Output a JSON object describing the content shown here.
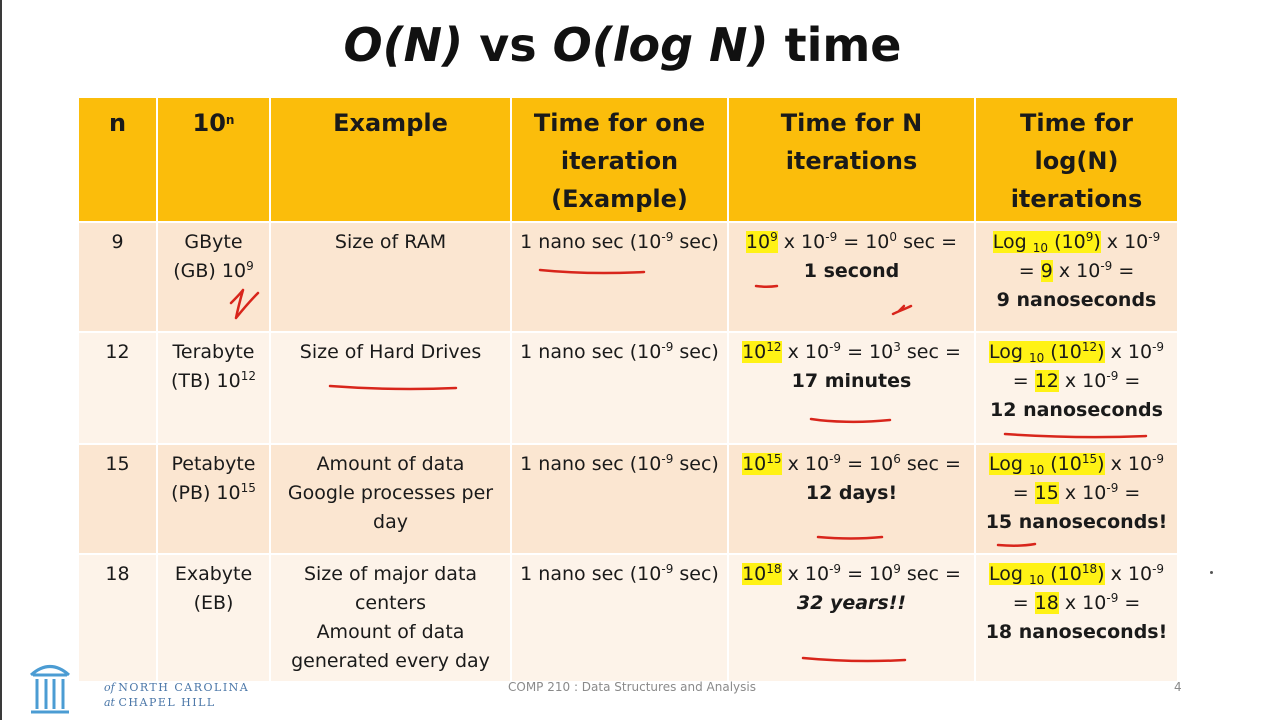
{
  "title": {
    "part1": "O(N)",
    "part2": " vs ",
    "part3": "O(log N)",
    "part4": " time"
  },
  "headers": {
    "n": "n",
    "pow_base": "10",
    "pow_exp": "n",
    "example": "Example",
    "one_iter": [
      "Time for one",
      "iteration",
      "(Example)"
    ],
    "n_iter": [
      "Time for N",
      "iterations"
    ],
    "log_iter": [
      "Time for",
      "log(N)",
      "iterations"
    ]
  },
  "rows": [
    {
      "n": "9",
      "unit_name": "GByte",
      "unit_abbr": "(GB) 10",
      "unit_exp": "9",
      "example": [
        "Size of RAM"
      ],
      "one": {
        "pre": "1 nano sec (10",
        "exp": "-9",
        "post": " sec)"
      },
      "nt": {
        "hl": "10",
        "hl_exp": "9",
        "mid": " x 10",
        "mid_exp": "-9",
        "eq": "  = 10",
        "eq_exp": "0",
        "tail": " sec =",
        "result": "1 second"
      },
      "lg": {
        "log": "Log ",
        "sub": "10",
        "arg": " (10",
        "arg_exp": "9",
        "close": ")",
        "x": " x 10",
        "x_exp": "-9",
        "eq_pre": "= ",
        "val": "9",
        "eq_post": " x 10",
        "eq_post_exp": "-9",
        "eq_end": " =",
        "result": "9 nanoseconds"
      }
    },
    {
      "n": "12",
      "unit_name": "Terabyte",
      "unit_abbr": "(TB) 10",
      "unit_exp": "12",
      "example": [
        "Size of Hard Drives"
      ],
      "one": {
        "pre": "1 nano sec (10",
        "exp": "-9",
        "post": " sec)"
      },
      "nt": {
        "hl": "10",
        "hl_exp": "12",
        "mid": " x 10",
        "mid_exp": "-9",
        "eq": "  = 10",
        "eq_exp": "3",
        "tail": " sec =",
        "result": "17 minutes"
      },
      "lg": {
        "log": "Log ",
        "sub": "10",
        "arg": " (10",
        "arg_exp": "12",
        "close": ")",
        "x": " x 10",
        "x_exp": "-9",
        "eq_pre": "= ",
        "val": "12",
        "eq_post": " x 10",
        "eq_post_exp": "-9",
        "eq_end": " =",
        "result": "12 nanoseconds"
      }
    },
    {
      "n": "15",
      "unit_name": "Petabyte",
      "unit_abbr": "(PB) 10",
      "unit_exp": "15",
      "example": [
        "Amount of data",
        "Google processes per",
        "day"
      ],
      "one": {
        "pre": "1 nano sec (10",
        "exp": "-9",
        "post": " sec)"
      },
      "nt": {
        "hl": "10",
        "hl_exp": "15",
        "mid": " x 10",
        "mid_exp": "-9",
        "eq": "  = 10",
        "eq_exp": "6",
        "tail": " sec =",
        "result": "12 days!"
      },
      "lg": {
        "log": "Log ",
        "sub": "10",
        "arg": " (10",
        "arg_exp": "15",
        "close": ")",
        "x": " x 10",
        "x_exp": "-9",
        "eq_pre": "= ",
        "val": "15",
        "eq_post": " x 10",
        "eq_post_exp": "-9",
        "eq_end": " =",
        "result": "15 nanoseconds!"
      }
    },
    {
      "n": "18",
      "unit_name": "Exabyte",
      "unit_abbr": "(EB)",
      "unit_exp": "",
      "example": [
        "Size of major data",
        "centers",
        "Amount of data",
        "generated every day"
      ],
      "one": {
        "pre": "1 nano sec (10",
        "exp": "-9",
        "post": " sec)"
      },
      "nt": {
        "hl": "10",
        "hl_exp": "18",
        "mid": " x 10",
        "mid_exp": "-9",
        "eq": "  = 10",
        "eq_exp": "9",
        "tail": " sec =",
        "result": "32 years!!"
      },
      "lg": {
        "log": "Log ",
        "sub": "10",
        "arg": " (10",
        "arg_exp": "18",
        "close": ")",
        "x": " x 10",
        "x_exp": "-9",
        "eq_pre": "= ",
        "val": "18",
        "eq_post": " x 10",
        "eq_post_exp": "-9",
        "eq_end": " =",
        "result": "18 nanoseconds!"
      }
    }
  ],
  "footer": {
    "uni_line1": "NORTH CAROLINA",
    "uni_line1_pre": "of ",
    "uni_line2": "CHAPEL HILL",
    "uni_line2_pre": "at ",
    "course": "COMP 210 : Data Structures and Analysis",
    "page": "4"
  },
  "colors": {
    "header_bg": "#fbbd0b",
    "row_dark": "#fbe6d1",
    "row_light": "#fdf3e9",
    "highlight": "#fff215",
    "ink_red": "#d8251b",
    "unc_blue": "#4b77a8"
  }
}
